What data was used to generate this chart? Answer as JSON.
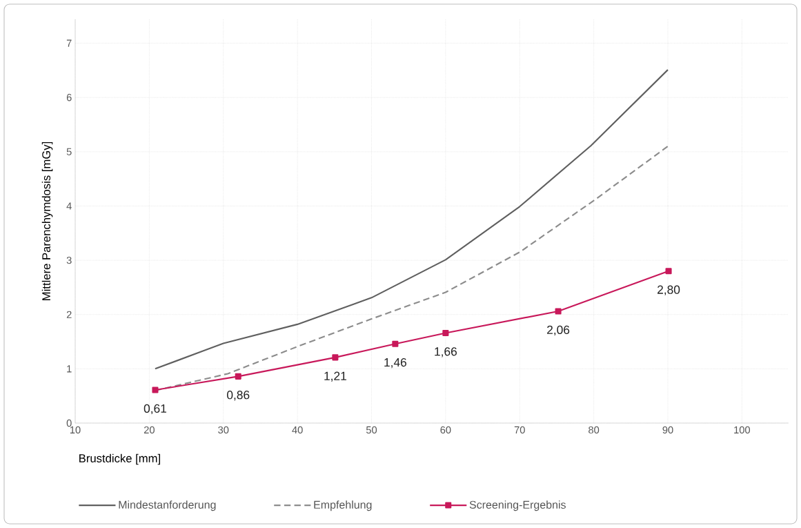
{
  "chart_data": {
    "type": "line",
    "xlabel": "Brustdicke [mm]",
    "ylabel": "Mittlere Parenchymdosis [mGy]",
    "xlim": [
      10,
      106.3
    ],
    "ylim": [
      0,
      7.44
    ],
    "xticks": [
      10,
      20,
      30,
      40,
      50,
      60,
      70,
      80,
      90,
      100
    ],
    "yticks": [
      0,
      1,
      2,
      3,
      4,
      5,
      6,
      7
    ],
    "grid": true,
    "legend": "bottom",
    "series": [
      {
        "name": "Mindestanforderung",
        "color": "#5f5f5f",
        "line_style": "solid",
        "marker": "none",
        "x": [
          20.8,
          30,
          40,
          50,
          60,
          70,
          79.6,
          90
        ],
        "values": [
          1.0,
          1.47,
          1.82,
          2.31,
          3.01,
          3.99,
          5.11,
          6.51
        ]
      },
      {
        "name": "Empfehlung",
        "color": "#8c8c8c",
        "line_style": "dashed",
        "marker": "none",
        "x": [
          20.8,
          30.6,
          40,
          50,
          60,
          70,
          80,
          90
        ],
        "values": [
          0.6,
          0.91,
          1.41,
          1.92,
          2.41,
          3.15,
          4.1,
          5.1
        ]
      },
      {
        "name": "Screening-Ergebnis",
        "color": "#c8185a",
        "line_style": "solid",
        "marker": "square",
        "x": [
          20.8,
          32.0,
          45.1,
          53.2,
          60.0,
          75.2,
          90.1
        ],
        "values": [
          0.61,
          0.86,
          1.21,
          1.46,
          1.66,
          2.06,
          2.8
        ],
        "value_labels": [
          "0,61",
          "0,86",
          "1,21",
          "1,46",
          "1,66",
          "2,06",
          "2,80"
        ]
      }
    ]
  }
}
